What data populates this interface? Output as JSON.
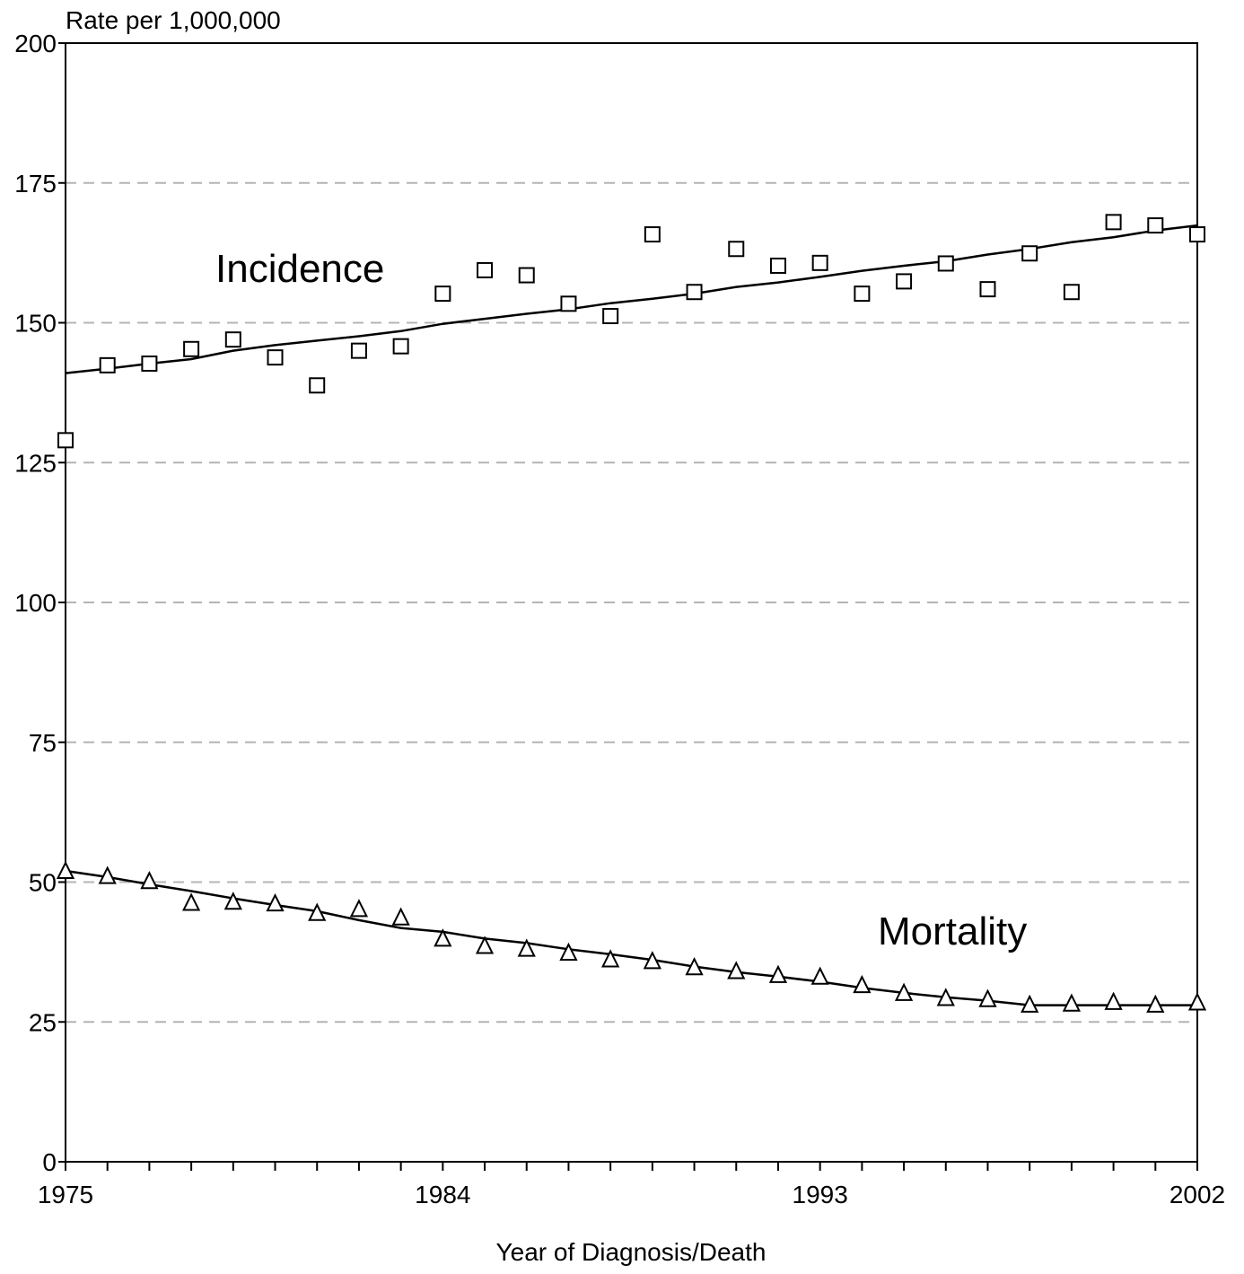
{
  "chart_data": {
    "type": "scatter",
    "ylabel": "Rate per 1,000,000",
    "xlabel": "Year of Diagnosis/Death",
    "xlim": [
      1975,
      2002
    ],
    "ylim": [
      0,
      200
    ],
    "x_tick_labels": [
      "1975",
      "1984",
      "1993",
      "2002"
    ],
    "y_tick_labels": [
      "0",
      "25",
      "50",
      "75",
      "100",
      "125",
      "150",
      "175",
      "200"
    ],
    "grid": "horizontal dashed",
    "x": [
      1975,
      1976,
      1977,
      1978,
      1979,
      1980,
      1981,
      1982,
      1983,
      1984,
      1985,
      1986,
      1987,
      1988,
      1989,
      1990,
      1991,
      1992,
      1993,
      1994,
      1995,
      1996,
      1997,
      1998,
      1999,
      2000,
      2001,
      2002
    ],
    "series": [
      {
        "name": "Incidence",
        "marker": "square",
        "observed": [
          129,
          142.4,
          142.7,
          145.3,
          147,
          143.8,
          138.8,
          145,
          145.8,
          155.2,
          159.4,
          158.5,
          153.4,
          151.2,
          165.8,
          155.5,
          163.2,
          160.2,
          160.7,
          155.2,
          157.4,
          160.6,
          156,
          162.4,
          155.5,
          168,
          167.4,
          165.8
        ],
        "fitted": [
          141,
          141.8,
          142.7,
          143.5,
          145,
          146,
          146.8,
          147.6,
          148.5,
          149.8,
          150.7,
          151.6,
          152.4,
          153.5,
          154.3,
          155.2,
          156.4,
          157.2,
          158.2,
          159.3,
          160.2,
          161,
          162.2,
          163.2,
          164.4,
          165.3,
          166.5,
          167.4
        ]
      },
      {
        "name": "Mortality",
        "marker": "triangle",
        "observed": [
          52,
          51.1,
          50.2,
          46.3,
          46.5,
          46.2,
          44.5,
          45.2,
          43.7,
          39.9,
          38.6,
          38.1,
          37.4,
          36.2,
          35.9,
          34.8,
          34.1,
          33.4,
          33.1,
          31.6,
          30.2,
          29.3,
          29.1,
          28.1,
          28.3,
          28.6,
          28.1,
          28.5
        ],
        "fitted": [
          52,
          50.9,
          49.6,
          48.4,
          47.1,
          45.9,
          44.8,
          43.2,
          41.8,
          41.1,
          39.9,
          39.1,
          38,
          37.1,
          36.1,
          34.9,
          33.9,
          33.1,
          32.2,
          31.1,
          30.2,
          29.4,
          28.8,
          28,
          28,
          28,
          28,
          28
        ]
      }
    ],
    "annotations": [
      "Incidence",
      "Mortality"
    ]
  }
}
